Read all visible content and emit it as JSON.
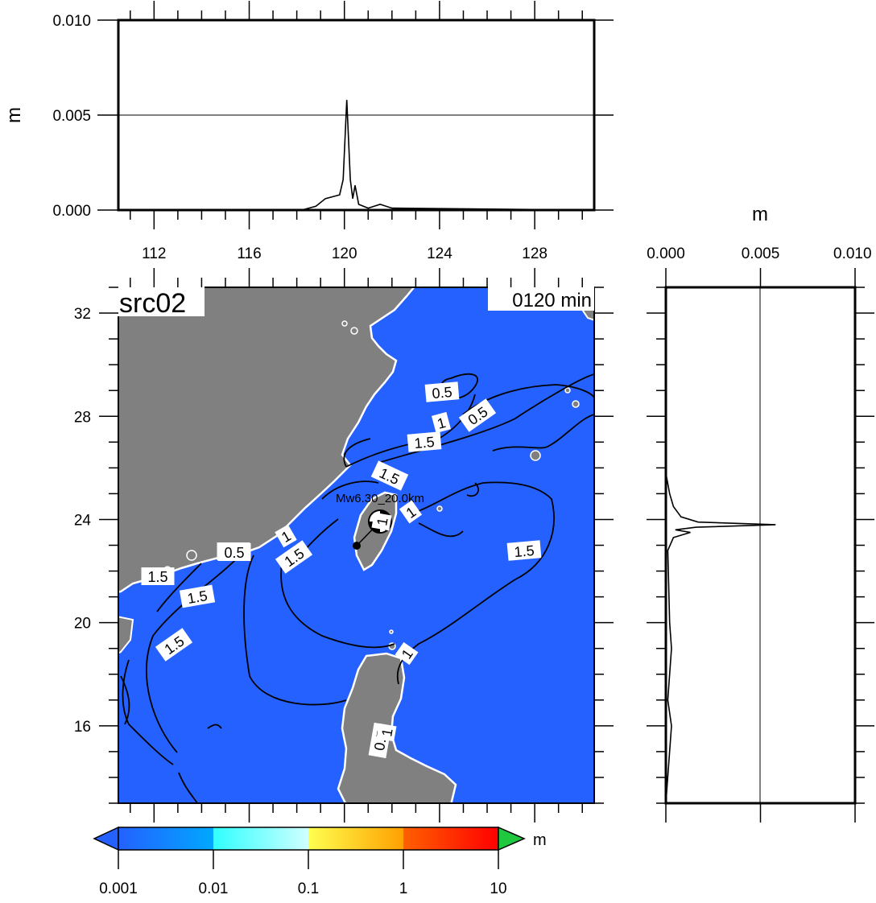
{
  "map": {
    "source_label": "src02",
    "time_label": "0120 min",
    "event_label": "Mw6.30_20.0km",
    "colors": {
      "ocean": "#2461ff",
      "land": "#808080"
    },
    "lon_ticks": [
      "112",
      "116",
      "120",
      "124",
      "128"
    ],
    "lat_ticks": [
      "32",
      "28",
      "24",
      "20",
      "16"
    ],
    "contour_labels": [
      "0.5",
      "1",
      "1.5",
      "0.5",
      "1",
      "1.5",
      "1.5",
      "1",
      "1.5",
      "1",
      "1.5",
      "0.5",
      "1.5",
      "1.5",
      "1.5",
      "1",
      "0.5",
      "1"
    ]
  },
  "top_profile": {
    "ylabel": "m",
    "yticks": [
      "0.010",
      "0.005",
      "0.000"
    ],
    "ylim": [
      0,
      0.01
    ],
    "xlim": [
      110.5,
      130.5
    ],
    "peak": {
      "x": 120.1,
      "y": 0.0058
    },
    "points": [
      [
        110.5,
        0
      ],
      [
        118.2,
        0
      ],
      [
        118.8,
        0.0002
      ],
      [
        119.2,
        0.0006
      ],
      [
        119.5,
        0.0007
      ],
      [
        119.8,
        0.0008
      ],
      [
        119.95,
        0.0016
      ],
      [
        120.1,
        0.0058
      ],
      [
        120.25,
        0.0016
      ],
      [
        120.35,
        0.0006
      ],
      [
        120.45,
        0.0013
      ],
      [
        120.6,
        0.0003
      ],
      [
        121.0,
        0.0001
      ],
      [
        121.5,
        0.0003
      ],
      [
        122.0,
        0.0001
      ],
      [
        130.5,
        0
      ]
    ]
  },
  "right_profile": {
    "xlabel": "m",
    "xticks": [
      "0.000",
      "0.005",
      "0.010"
    ],
    "xlim": [
      0,
      0.01
    ],
    "ylim": [
      13,
      33
    ],
    "peak": {
      "lat": 23.8,
      "value": 0.0058
    },
    "points": [
      [
        0,
        33
      ],
      [
        0,
        25.8
      ],
      [
        0.0002,
        25
      ],
      [
        0.0004,
        24.5
      ],
      [
        0.0008,
        24.1
      ],
      [
        0.0017,
        23.9
      ],
      [
        0.0058,
        23.8
      ],
      [
        0.0016,
        23.7
      ],
      [
        0.0005,
        23.6
      ],
      [
        0.0013,
        23.5
      ],
      [
        0.0004,
        23.3
      ],
      [
        0.0001,
        22.8
      ],
      [
        0.0002,
        20
      ],
      [
        0.0003,
        19
      ],
      [
        0.0001,
        17
      ],
      [
        0.0003,
        16
      ],
      [
        0,
        13
      ]
    ]
  },
  "colorbar": {
    "unit": "m",
    "ticks": [
      "0.001",
      "0.01",
      "0.1",
      "1",
      "10"
    ],
    "stops": [
      "#2461ff",
      "#00a0ff",
      "#30ffff",
      "#c8ffff",
      "#ffff50",
      "#ffa000",
      "#ff5000",
      "#ff0000"
    ],
    "over_color": "#20c840",
    "under_color": "#2461ff"
  }
}
